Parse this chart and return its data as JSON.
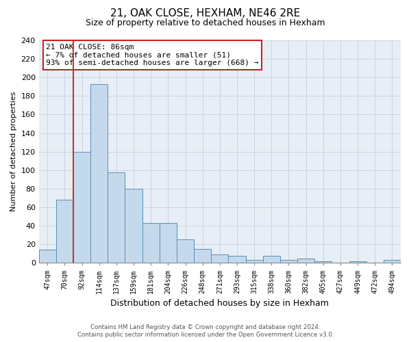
{
  "title": "21, OAK CLOSE, HEXHAM, NE46 2RE",
  "subtitle": "Size of property relative to detached houses in Hexham",
  "xlabel": "Distribution of detached houses by size in Hexham",
  "ylabel": "Number of detached properties",
  "bar_labels": [
    "47sqm",
    "70sqm",
    "92sqm",
    "114sqm",
    "137sqm",
    "159sqm",
    "181sqm",
    "204sqm",
    "226sqm",
    "248sqm",
    "271sqm",
    "293sqm",
    "315sqm",
    "338sqm",
    "360sqm",
    "382sqm",
    "405sqm",
    "427sqm",
    "449sqm",
    "472sqm",
    "494sqm"
  ],
  "bar_values": [
    14,
    68,
    120,
    193,
    98,
    80,
    43,
    43,
    25,
    15,
    9,
    8,
    3,
    8,
    3,
    5,
    2,
    0,
    2,
    0,
    3
  ],
  "bar_color": "#c5d9ed",
  "bar_edge_color": "#5a8db5",
  "ylim": [
    0,
    240
  ],
  "yticks": [
    0,
    20,
    40,
    60,
    80,
    100,
    120,
    140,
    160,
    180,
    200,
    220,
    240
  ],
  "property_line_label": "21 OAK CLOSE: 86sqm",
  "annotation_line1": "← 7% of detached houses are smaller (51)",
  "annotation_line2": "93% of semi-detached houses are larger (668) →",
  "footer_line1": "Contains HM Land Registry data © Crown copyright and database right 2024.",
  "footer_line2": "Contains public sector information licensed under the Open Government Licence v3.0.",
  "background_color": "#ffffff",
  "grid_color": "#c8d4e3"
}
